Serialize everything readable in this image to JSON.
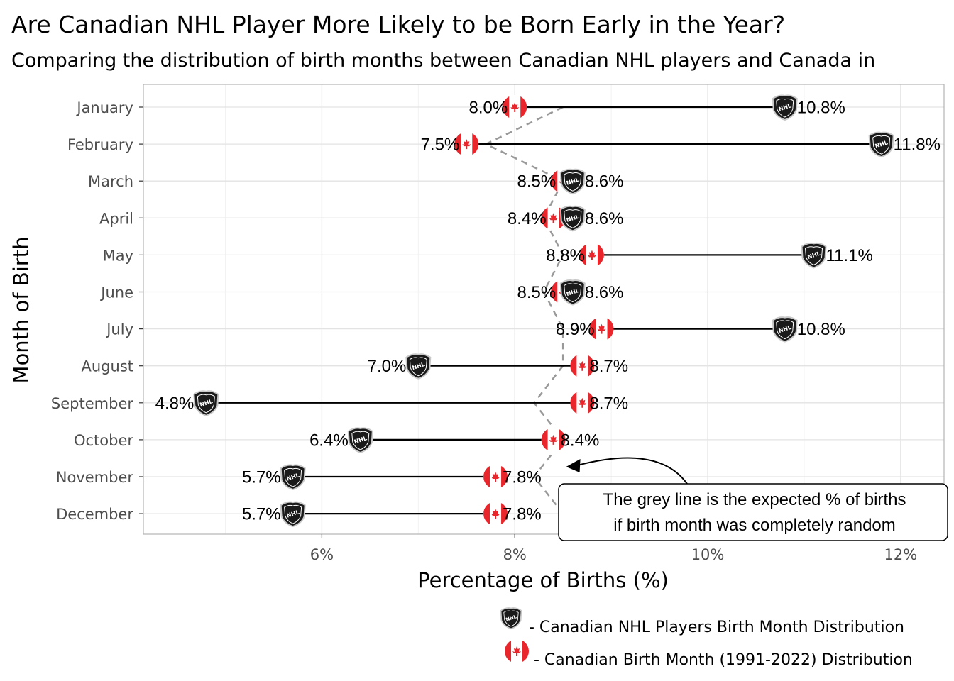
{
  "chart_data": {
    "type": "dumbbell",
    "title": "Are Canadian NHL Player More Likely to be Born Early in the Year?",
    "subtitle": "Comparing the distribution of birth months between Canadian NHL players and Canada in",
    "xlabel": "Percentage of Births (%)",
    "ylabel": "Month of Birth",
    "xlim": [
      4.15,
      12.45
    ],
    "xticks": [
      6,
      8,
      10,
      12
    ],
    "xtick_labels": [
      "6%",
      "8%",
      "10%",
      "12%"
    ],
    "grid": true,
    "categories": [
      "January",
      "February",
      "March",
      "April",
      "May",
      "June",
      "July",
      "August",
      "September",
      "October",
      "November",
      "December"
    ],
    "series": [
      {
        "name": "- Canadian NHL Players Birth Month Distribution",
        "icon": "nhl-shield-icon",
        "color": "#000000",
        "values": [
          10.8,
          11.8,
          8.6,
          8.6,
          11.1,
          8.6,
          10.8,
          7.0,
          4.8,
          6.4,
          5.7,
          5.7
        ],
        "labels": [
          "10.8%",
          "11.8%",
          "8.6%",
          "8.6%",
          "11.1%",
          "8.6%",
          "10.8%",
          "7.0%",
          "4.8%",
          "6.4%",
          "5.7%",
          "5.7%"
        ]
      },
      {
        "name": "- Canadian Birth Month (1991-2022) Distribution",
        "icon": "canada-flag-icon",
        "color": "#e8262b",
        "values": [
          8.0,
          7.5,
          8.5,
          8.4,
          8.8,
          8.5,
          8.9,
          8.7,
          8.7,
          8.4,
          7.8,
          7.8
        ],
        "labels": [
          "8.0%",
          "7.5%",
          "8.5%",
          "8.4%",
          "8.8%",
          "8.5%",
          "8.9%",
          "8.7%",
          "8.7%",
          "8.4%",
          "7.8%",
          "7.8%"
        ]
      }
    ],
    "expected_line": {
      "style": "dashed",
      "color": "#999999",
      "values": [
        8.5,
        7.7,
        8.5,
        8.3,
        8.5,
        8.3,
        8.5,
        8.5,
        8.2,
        8.5,
        8.2,
        8.5
      ]
    },
    "annotation": {
      "lines": [
        "The grey line is the expected % of births",
        "if birth month was completely random"
      ],
      "arrow_to_category": "November",
      "arrow_to_x": 8.4
    },
    "legend_position": "bottom-right"
  }
}
